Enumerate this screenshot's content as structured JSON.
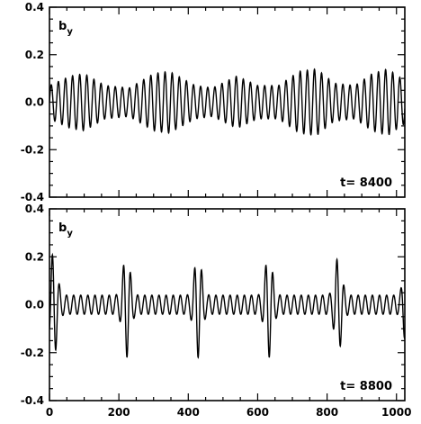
{
  "chart_data": [
    {
      "type": "line",
      "panel": "top",
      "ylabel_main": "b",
      "ylabel_sub": "y",
      "annotation": "t=  8400",
      "xlim": [
        0,
        1024
      ],
      "ylim": [
        -0.4,
        0.4
      ],
      "yticks": [
        "0.4",
        "0.2",
        "0.0",
        "-0.2",
        "-0.4"
      ],
      "xticks": [],
      "series": [
        {
          "description": "dense oscillation, carrier period ~20.5, amplitude modulated between ~0.06 and ~0.14",
          "carrier_period": 20.5,
          "envelope_points": [
            [
              0,
              0.07
            ],
            [
              60,
              0.11
            ],
            [
              100,
              0.12
            ],
            [
              160,
              0.07
            ],
            [
              230,
              0.06
            ],
            [
              300,
              0.12
            ],
            [
              345,
              0.13
            ],
            [
              420,
              0.07
            ],
            [
              470,
              0.06
            ],
            [
              540,
              0.11
            ],
            [
              600,
              0.07
            ],
            [
              660,
              0.07
            ],
            [
              720,
              0.13
            ],
            [
              770,
              0.14
            ],
            [
              820,
              0.08
            ],
            [
              880,
              0.07
            ],
            [
              930,
              0.12
            ],
            [
              975,
              0.14
            ],
            [
              1024,
              0.09
            ]
          ]
        }
      ]
    },
    {
      "type": "line",
      "panel": "bottom",
      "ylabel_main": "b",
      "ylabel_sub": "y",
      "annotation": "t=  8800",
      "xlim": [
        0,
        1024
      ],
      "ylim": [
        -0.4,
        0.4
      ],
      "yticks": [
        "0.4",
        "0.2",
        "0.0",
        "-0.2",
        "-0.4"
      ],
      "xticks": [
        "0",
        "200",
        "400",
        "600",
        "800",
        "1000"
      ],
      "series": [
        {
          "description": "background oscillation ~0.04 with localized bursts (wave packets) reaching ~0.2",
          "carrier_period": 20.5,
          "background_amplitude": 0.04,
          "bursts": [
            [
              12,
              0.22,
              14
            ],
            [
              222,
              0.22,
              14
            ],
            [
              428,
              0.22,
              14
            ],
            [
              632,
              0.22,
              14
            ],
            [
              832,
              0.2,
              14
            ],
            [
              1024,
              0.14,
              10
            ]
          ]
        }
      ]
    }
  ]
}
